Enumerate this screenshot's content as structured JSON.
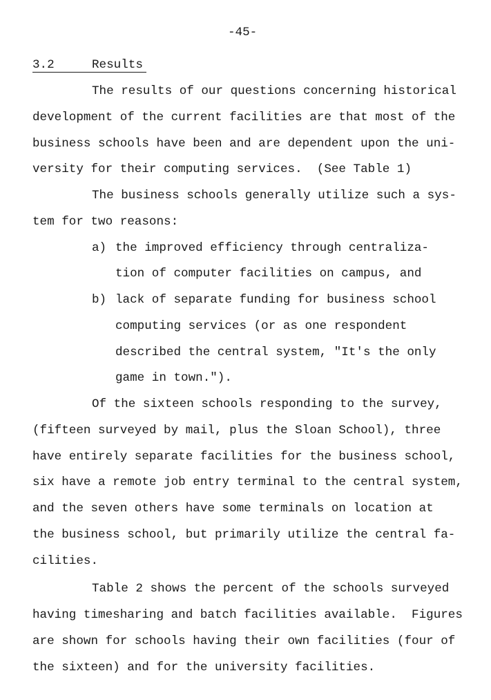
{
  "page_number": "-45-",
  "heading": {
    "number": "3.2",
    "title": "Results"
  },
  "paragraph_1": {
    "lines": [
      "The results of our questions concerning historical",
      "development of the current facilities are that most of the",
      "business schools have been and are dependent upon the uni-",
      "versity for their computing services.  (See Table 1)"
    ]
  },
  "paragraph_2": {
    "lines": [
      "The business schools generally utilize such a sys-",
      "tem for two reasons:"
    ]
  },
  "list": {
    "items": [
      {
        "marker": "a)",
        "lines": [
          "the improved efficiency through centraliza-",
          "tion of computer facilities on campus, and"
        ]
      },
      {
        "marker": "b)",
        "lines": [
          "lack of separate funding for business school",
          "computing services (or as one respondent",
          "described the central system, \"It's the only",
          "game in town.\")."
        ]
      }
    ]
  },
  "paragraph_3": {
    "lines": [
      "Of the sixteen schools responding to the survey,",
      "(fifteen surveyed by mail, plus the Sloan School), three",
      "have entirely separate facilities for the business school,",
      "six have a remote job entry terminal to the central system,",
      "and the seven others have some terminals on location at",
      "the business school, but primarily utilize the central fa-",
      "cilities."
    ]
  },
  "paragraph_4": {
    "lines": [
      "Table 2 shows the percent of the schools surveyed",
      "having timesharing and batch facilities available.  Figures",
      "are shown for schools having their own facilities (four of",
      "the sixteen) and for the university facilities."
    ]
  }
}
